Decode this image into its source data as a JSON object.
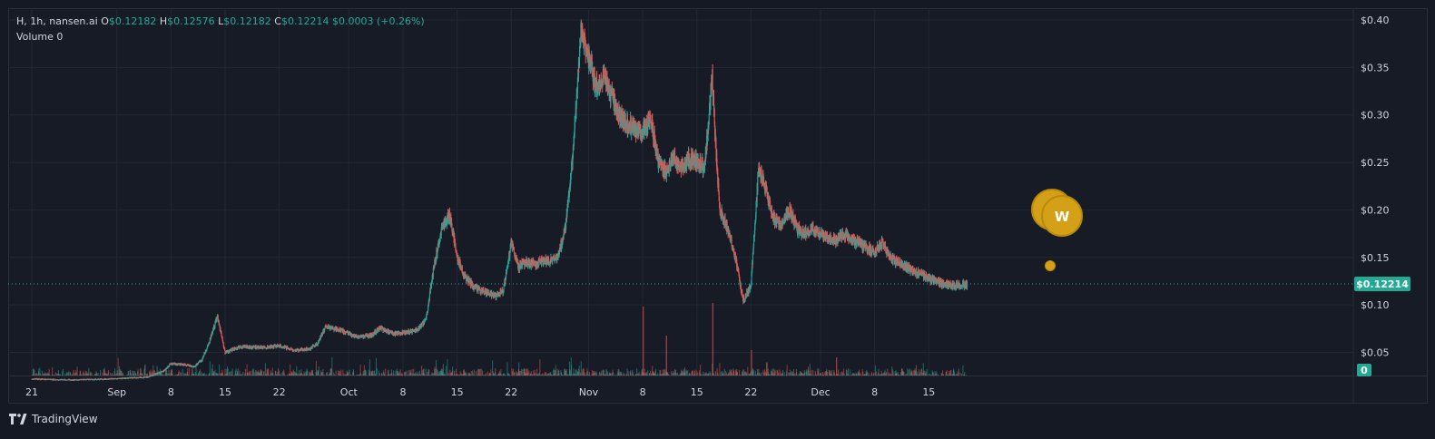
{
  "legend": {
    "symbol": "H, 1h, nansen.ai",
    "o_label": "O",
    "o_value": "$0.12182",
    "h_label": "H",
    "h_value": "$0.12576",
    "l_label": "L",
    "l_value": "$0.12182",
    "c_label": "C",
    "c_value": "$0.12214",
    "change": "$0.0003 (+0.26%)",
    "volume_label": "Volume",
    "volume_value": "0"
  },
  "colors": {
    "up": "#26a69a",
    "down": "#ef5350",
    "price_tag": "#22ab94",
    "grid": "#232734",
    "text": "#d1d4dc",
    "marker": "#d4a017"
  },
  "footer": {
    "brand": "TradingView"
  },
  "markers": {
    "large_label": "W"
  },
  "chart_data": {
    "type": "candlestick",
    "timeframe": "1h",
    "y_axis": {
      "ticks": [
        "$0.40",
        "$0.35",
        "$0.30",
        "$0.25",
        "$0.20",
        "$0.15",
        "$0.10",
        "$0.05"
      ],
      "tick_values": [
        0.4,
        0.35,
        0.3,
        0.25,
        0.2,
        0.15,
        0.1,
        0.05
      ],
      "range": [
        0.0,
        0.4
      ]
    },
    "x_axis": {
      "ticks": [
        "21",
        "Sep",
        "8",
        "15",
        "22",
        "Oct",
        "8",
        "15",
        "22",
        "Nov",
        "8",
        "15",
        "22",
        "Dec",
        "8",
        "15"
      ],
      "tick_days": [
        0,
        11,
        18,
        25,
        32,
        41,
        48,
        55,
        62,
        72,
        79,
        86,
        93,
        102,
        109,
        116
      ]
    },
    "last_price": 0.12214,
    "last_price_label": "$0.12214",
    "volume_label": "0",
    "price_path": [
      [
        0,
        0.022
      ],
      [
        5,
        0.021
      ],
      [
        10,
        0.022
      ],
      [
        15,
        0.024
      ],
      [
        17,
        0.03
      ],
      [
        18,
        0.038
      ],
      [
        20,
        0.037
      ],
      [
        21,
        0.035
      ],
      [
        22,
        0.042
      ],
      [
        23,
        0.062
      ],
      [
        24,
        0.088
      ],
      [
        25,
        0.05
      ],
      [
        27,
        0.056
      ],
      [
        30,
        0.055
      ],
      [
        32,
        0.057
      ],
      [
        34,
        0.052
      ],
      [
        36,
        0.054
      ],
      [
        37,
        0.06
      ],
      [
        38,
        0.077
      ],
      [
        39,
        0.075
      ],
      [
        40,
        0.073
      ],
      [
        42,
        0.066
      ],
      [
        44,
        0.068
      ],
      [
        45,
        0.076
      ],
      [
        46,
        0.072
      ],
      [
        47,
        0.07
      ],
      [
        49,
        0.072
      ],
      [
        50,
        0.075
      ],
      [
        51,
        0.085
      ],
      [
        52,
        0.14
      ],
      [
        53,
        0.18
      ],
      [
        54,
        0.195
      ],
      [
        54.5,
        0.175
      ],
      [
        55,
        0.15
      ],
      [
        56,
        0.13
      ],
      [
        57,
        0.12
      ],
      [
        58,
        0.115
      ],
      [
        59,
        0.112
      ],
      [
        60,
        0.11
      ],
      [
        61,
        0.115
      ],
      [
        62,
        0.165
      ],
      [
        63,
        0.14
      ],
      [
        64,
        0.145
      ],
      [
        65,
        0.142
      ],
      [
        66,
        0.147
      ],
      [
        67,
        0.146
      ],
      [
        68,
        0.15
      ],
      [
        69,
        0.18
      ],
      [
        70,
        0.26
      ],
      [
        71,
        0.39
      ],
      [
        72,
        0.36
      ],
      [
        73,
        0.33
      ],
      [
        74,
        0.34
      ],
      [
        75,
        0.32
      ],
      [
        76,
        0.3
      ],
      [
        77,
        0.29
      ],
      [
        78,
        0.285
      ],
      [
        79,
        0.28
      ],
      [
        80,
        0.3
      ],
      [
        81,
        0.25
      ],
      [
        82,
        0.24
      ],
      [
        83,
        0.255
      ],
      [
        84,
        0.245
      ],
      [
        85,
        0.255
      ],
      [
        86,
        0.25
      ],
      [
        87,
        0.245
      ],
      [
        88,
        0.34
      ],
      [
        88.5,
        0.26
      ],
      [
        89,
        0.2
      ],
      [
        90,
        0.18
      ],
      [
        91,
        0.15
      ],
      [
        92,
        0.105
      ],
      [
        93,
        0.12
      ],
      [
        94,
        0.245
      ],
      [
        95,
        0.22
      ],
      [
        96,
        0.19
      ],
      [
        97,
        0.185
      ],
      [
        98,
        0.2
      ],
      [
        99,
        0.18
      ],
      [
        100,
        0.175
      ],
      [
        101,
        0.18
      ],
      [
        102,
        0.175
      ],
      [
        103,
        0.17
      ],
      [
        104,
        0.168
      ],
      [
        105,
        0.175
      ],
      [
        106,
        0.17
      ],
      [
        107,
        0.165
      ],
      [
        108,
        0.16
      ],
      [
        109,
        0.155
      ],
      [
        110,
        0.165
      ],
      [
        111,
        0.15
      ],
      [
        112,
        0.145
      ],
      [
        113,
        0.14
      ],
      [
        114,
        0.135
      ],
      [
        115,
        0.132
      ],
      [
        116,
        0.128
      ],
      [
        117,
        0.125
      ],
      [
        118,
        0.122
      ],
      [
        119,
        0.121
      ],
      [
        120,
        0.12
      ],
      [
        121,
        0.122
      ]
    ],
    "volume_spikes": [
      [
        79,
        0.95
      ],
      [
        82,
        0.55
      ],
      [
        88,
        1.0
      ],
      [
        93,
        0.35
      ],
      [
        95,
        0.18
      ],
      [
        104,
        0.25
      ]
    ]
  }
}
